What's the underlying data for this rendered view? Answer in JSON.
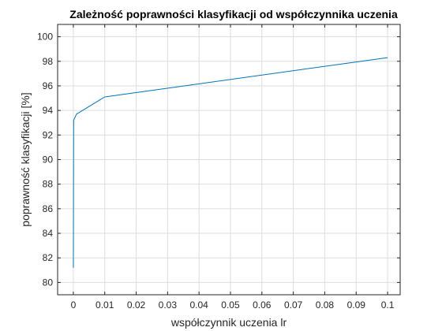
{
  "chart_data": {
    "type": "line",
    "title": "Zależność poprawności klasyfikacji od współczynnika uczenia",
    "xlabel": "współczynnik uczenia lr",
    "ylabel": "poprawność klasyfikacji [%]",
    "xlim": [
      -0.005,
      0.104
    ],
    "ylim": [
      79,
      101
    ],
    "grid": true,
    "xticks": [
      0,
      0.01,
      0.02,
      0.03,
      0.04,
      0.05,
      0.06,
      0.07,
      0.08,
      0.09,
      0.1
    ],
    "xtick_labels": [
      "0",
      "0.01",
      "0.02",
      "0.03",
      "0.04",
      "0.05",
      "0.06",
      "0.07",
      "0.08",
      "0.09",
      "0.1"
    ],
    "yticks": [
      80,
      82,
      84,
      86,
      88,
      90,
      92,
      94,
      96,
      98,
      100
    ],
    "ytick_labels": [
      "80",
      "82",
      "84",
      "86",
      "88",
      "90",
      "92",
      "94",
      "96",
      "98",
      "100"
    ],
    "series": [
      {
        "color": "#0072bd",
        "x": [
          1e-05,
          0.0001,
          0.001,
          0.01,
          0.1
        ],
        "y": [
          81.2,
          93.2,
          93.7,
          95.1,
          98.3
        ]
      }
    ]
  }
}
